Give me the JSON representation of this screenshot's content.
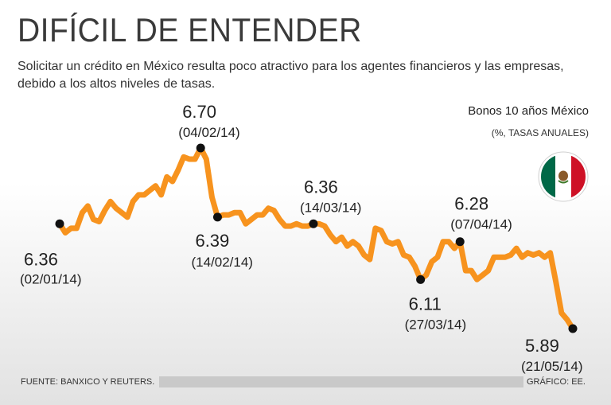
{
  "header": {
    "title": "DIFÍCIL DE ENTENDER",
    "subtitle": "Solicitar un crédito en México resulta poco atractivo para los agentes financieros y las empresas, debido a los altos niveles de tasas."
  },
  "legend": {
    "series_label": "Bonos 10 años México",
    "unit_label": "(%, TASAS ANUALES)",
    "flag_icon": "mexico-flag-icon"
  },
  "footer": {
    "source": "FUENTE: BANXICO Y REUTERS.",
    "credit": "GRÁFICO: EE."
  },
  "colors": {
    "line": "#f7931e",
    "marker": "#111111",
    "flag_green": "#006847",
    "flag_red": "#ce1126"
  },
  "chart_data": {
    "type": "line",
    "title": "Bonos 10 años México",
    "ylabel": "%, tasas anuales",
    "x_start": "02/01/14",
    "x_end": "21/05/14",
    "ylim": [
      5.8,
      6.8
    ],
    "grid": false,
    "legend_position": "top-right",
    "series": [
      {
        "name": "Bonos 10 años México",
        "values": [
          6.36,
          6.32,
          6.34,
          6.34,
          6.41,
          6.44,
          6.38,
          6.37,
          6.42,
          6.46,
          6.43,
          6.41,
          6.39,
          6.46,
          6.49,
          6.49,
          6.51,
          6.53,
          6.49,
          6.57,
          6.55,
          6.6,
          6.66,
          6.65,
          6.65,
          6.7,
          6.65,
          6.48,
          6.39,
          6.4,
          6.4,
          6.41,
          6.41,
          6.36,
          6.38,
          6.4,
          6.4,
          6.43,
          6.42,
          6.38,
          6.35,
          6.35,
          6.36,
          6.35,
          6.35,
          6.36,
          6.36,
          6.35,
          6.31,
          6.28,
          6.3,
          6.26,
          6.28,
          6.26,
          6.22,
          6.2,
          6.34,
          6.33,
          6.28,
          6.27,
          6.28,
          6.22,
          6.21,
          6.17,
          6.11,
          6.13,
          6.19,
          6.21,
          6.28,
          6.28,
          6.25,
          6.28,
          6.15,
          6.15,
          6.11,
          6.13,
          6.15,
          6.21,
          6.21,
          6.21,
          6.22,
          6.25,
          6.21,
          6.23,
          6.22,
          6.23,
          6.21,
          6.23,
          6.1,
          5.96,
          5.93,
          5.89
        ]
      }
    ],
    "annotations": [
      {
        "value": "6.36",
        "date": "(02/01/14)",
        "index": 0,
        "label_pos": "below-left"
      },
      {
        "value": "6.70",
        "date": "(04/02/14)",
        "index": 25,
        "label_pos": "above"
      },
      {
        "value": "6.39",
        "date": "(14/02/14)",
        "index": 28,
        "label_pos": "below"
      },
      {
        "value": "6.36",
        "date": "(14/03/14)",
        "index": 45,
        "label_pos": "above"
      },
      {
        "value": "6.11",
        "date": "(27/03/14)",
        "index": 64,
        "label_pos": "below"
      },
      {
        "value": "6.28",
        "date": "(07/04/14)",
        "index": 71,
        "label_pos": "above"
      },
      {
        "value": "5.89",
        "date": "(21/05/14)",
        "index": 91,
        "label_pos": "below"
      }
    ]
  }
}
